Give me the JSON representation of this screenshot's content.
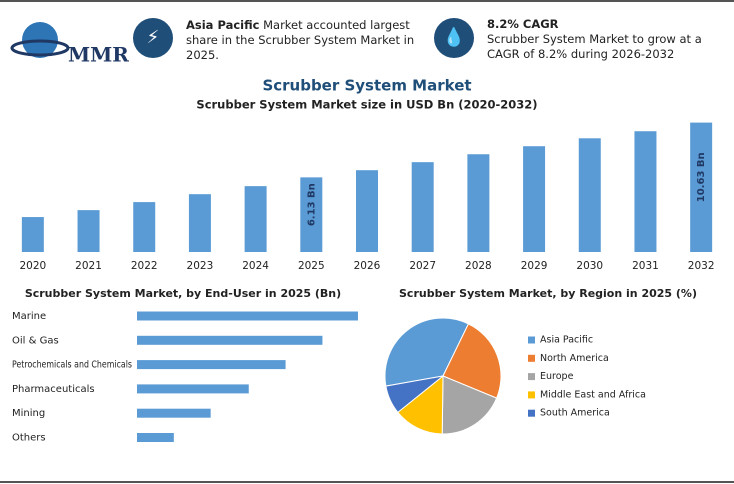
{
  "header": {
    "logo": "MMR",
    "callouts": [
      {
        "bold": "Asia Pacific",
        "text": "Market accounted largest share in the Scrubber System Market in 2025."
      },
      {
        "title": "8.2% CAGR",
        "text": "Scrubber System Market to grow at a CAGR of 8.2% during 2026-2032"
      }
    ]
  },
  "chart_data": [
    {
      "type": "bar",
      "title": "Scrubber System Market",
      "subtitle": "Scrubber System Market size in USD Bn (2020-2032)",
      "categories": [
        "2020",
        "2021",
        "2022",
        "2023",
        "2024",
        "2025",
        "2026",
        "2027",
        "2028",
        "2029",
        "2030",
        "2031",
        "2032"
      ],
      "values": [
        2.87,
        3.44,
        4.1,
        4.75,
        5.41,
        6.13,
        6.72,
        7.38,
        8.03,
        8.69,
        9.34,
        9.92,
        10.63
      ],
      "value_labels": [
        null,
        null,
        null,
        null,
        null,
        "6.13 Bn",
        null,
        null,
        null,
        null,
        null,
        null,
        "10.63 Bn"
      ],
      "color": "#5b9bd5",
      "ylim": [
        0,
        11.5
      ]
    },
    {
      "type": "hbar",
      "title": "Scrubber System Market, by End-User in 2025 (Bn)",
      "categories": [
        "Marine",
        "Oil & Gas",
        "Petrochemicals and Chemicals",
        "Pharmaceuticals",
        "Mining",
        "Others"
      ],
      "values": [
        1.74,
        1.46,
        1.17,
        0.88,
        0.58,
        0.29
      ],
      "color": "#5b9bd5",
      "xlim": [
        0,
        2
      ]
    },
    {
      "type": "pie",
      "title": "Scrubber System Market, by Region in 2025 (%)",
      "categories": [
        "Asia Pacific",
        "North America",
        "Europe",
        "Middle East and Africa",
        "South America"
      ],
      "values": [
        35,
        24,
        19,
        14,
        8
      ],
      "colors": [
        "#5b9bd5",
        "#ed7d31",
        "#a5a5a5",
        "#ffc000",
        "#4472c4"
      ]
    }
  ]
}
